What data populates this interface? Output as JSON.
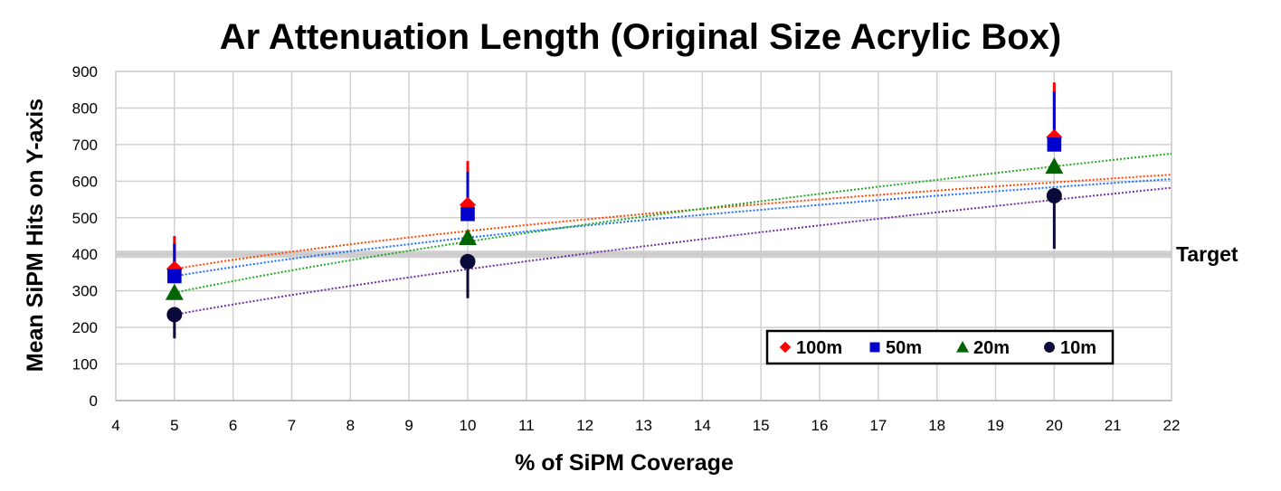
{
  "chart_data": {
    "type": "scatter",
    "title": "Ar Attenuation Length (Original Size Acrylic Box)",
    "xlabel": "% of SiPM Coverage",
    "ylabel": "Mean SiPM Hits on Y-axis",
    "xlim": [
      4,
      22
    ],
    "ylim": [
      0,
      900
    ],
    "xticks": [
      4,
      5,
      6,
      7,
      8,
      9,
      10,
      11,
      12,
      13,
      14,
      15,
      16,
      17,
      18,
      19,
      20,
      21,
      22
    ],
    "yticks": [
      0,
      100,
      200,
      300,
      400,
      500,
      600,
      700,
      800,
      900
    ],
    "grid": true,
    "legend_position": "lower-right",
    "target": {
      "label": "Target",
      "value": 400
    },
    "series": [
      {
        "name": "100m",
        "color": "#ff0000",
        "marker": "diamond",
        "line_color": "#ff4500",
        "x": [
          5,
          10,
          20
        ],
        "y": [
          360,
          535,
          720
        ],
        "err_low": [
          0,
          0,
          0
        ],
        "err_high": [
          90,
          120,
          150
        ],
        "trend": {
          "a": 360.0,
          "b": 0.3645
        }
      },
      {
        "name": "50m",
        "color": "#0000cc",
        "marker": "square",
        "line_color": "#1e6fff",
        "x": [
          5,
          10,
          20
        ],
        "y": [
          340,
          510,
          700
        ],
        "err_low": [
          0,
          0,
          0
        ],
        "err_high": [
          90,
          115,
          145
        ],
        "trend": {
          "a": 340.0,
          "b": 0.3898
        }
      },
      {
        "name": "20m",
        "color": "#006400",
        "marker": "triangle",
        "line_color": "#22aa22",
        "x": [
          5,
          10,
          20
        ],
        "y": [
          295,
          445,
          640
        ],
        "err_low": [
          0,
          0,
          0
        ],
        "err_high": [
          0,
          0,
          0
        ],
        "trend": {
          "a": 295.0,
          "b": 0.559
        }
      },
      {
        "name": "10m",
        "color": "#0a0a3a",
        "marker": "circle",
        "line_color": "#7030a0",
        "x": [
          5,
          10,
          20
        ],
        "y": [
          235,
          380,
          560
        ],
        "err_low": [
          65,
          100,
          145
        ],
        "err_high": [
          0,
          0,
          0
        ],
        "trend": {
          "a": 235.0,
          "b": 0.612
        }
      }
    ]
  }
}
